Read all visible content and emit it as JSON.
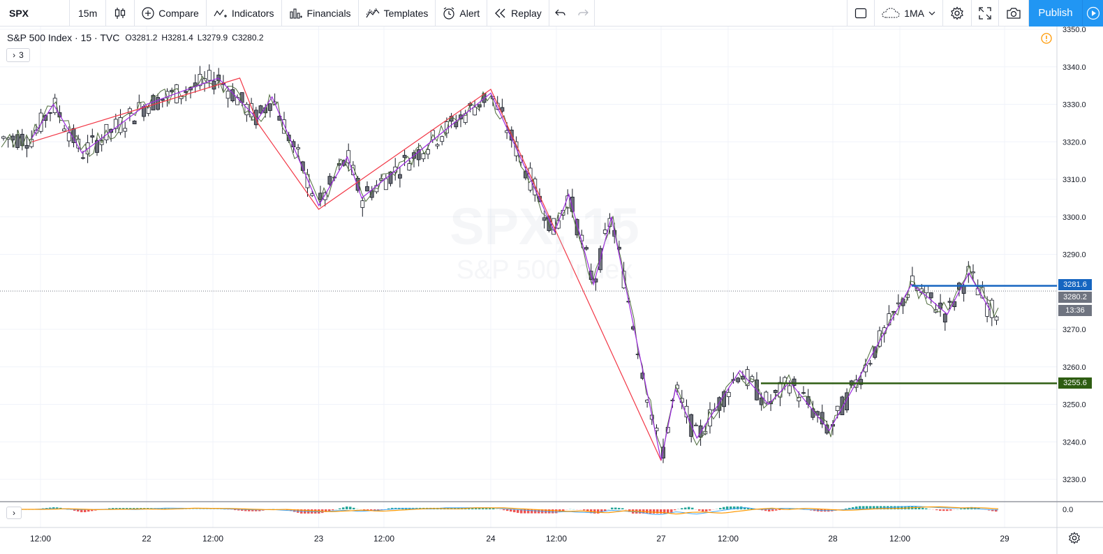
{
  "toolbar": {
    "symbol": "SPX",
    "interval": "15m",
    "compare": "Compare",
    "indicators": "Indicators",
    "financials": "Financials",
    "templates": "Templates",
    "alert": "Alert",
    "replay": "Replay",
    "layout_label": "1MA",
    "publish": "Publish"
  },
  "legend": {
    "title": "S&P 500 Index · 15 · TVC",
    "open": "O3281.2",
    "high": "H3281.4",
    "low": "L3279.9",
    "close": "C3280.2",
    "collapse": "3"
  },
  "watermark": {
    "symbol": "SPX, 15",
    "name": "S&P 500 Index"
  },
  "price_axis": {
    "ticks": [
      "3350.0",
      "3340.0",
      "3330.0",
      "3320.0",
      "3310.0",
      "3300.0",
      "3290.0",
      "3270.0",
      "3260.0",
      "3250.0",
      "3240.0",
      "3230.0"
    ],
    "tags": {
      "blue_line": "3281.6",
      "last_price": "3280.2",
      "countdown": "13:36",
      "green_line": "3255.6"
    },
    "macd_zero": "0.0"
  },
  "time_axis": [
    "12:00",
    "22",
    "12:00",
    "23",
    "12:00",
    "24",
    "12:00",
    "27",
    "12:00",
    "28",
    "12:00",
    "29"
  ],
  "colors": {
    "accent": "#2196f3",
    "blue_line": "#1565c0",
    "green_line": "#2e5d12",
    "zigzag_red": "#f23645",
    "zigzag_purple": "#9c27e0",
    "zigzag_green": "#4e6b3c",
    "macd_line": "#42a5f5",
    "signal_line": "#ff9800"
  },
  "chart_data": {
    "type": "candlestick",
    "price_range": [
      3225,
      3352
    ],
    "levels": {
      "blue": 3281.6,
      "green": 3255.6,
      "last": 3280.2
    },
    "red_zigzag": [
      {
        "t": "21 08:00",
        "p": 3320
      },
      {
        "t": "22 13:00",
        "p": 3337
      },
      {
        "t": "22 15:30",
        "p": 3325
      },
      {
        "t": "23 00:00",
        "p": 3302
      },
      {
        "t": "24 00:00",
        "p": 3334
      },
      {
        "t": "27 00:00",
        "p": 3235
      }
    ],
    "purple_zigzag": [
      {
        "t": "21 08:00",
        "p": 3321
      },
      {
        "t": "21 11:00",
        "p": 3330
      },
      {
        "t": "21 15:00",
        "p": 3317
      },
      {
        "t": "22 00:00",
        "p": 3330
      },
      {
        "t": "22 10:00",
        "p": 3337
      },
      {
        "t": "22 15:30",
        "p": 3326
      },
      {
        "t": "22 17:30",
        "p": 3332
      },
      {
        "t": "23 00:00",
        "p": 3303
      },
      {
        "t": "23 04:00",
        "p": 3316
      },
      {
        "t": "23 06:00",
        "p": 3305
      },
      {
        "t": "24 00:00",
        "p": 3333
      },
      {
        "t": "24 09:00",
        "p": 3296
      },
      {
        "t": "24 11:00",
        "p": 3306
      },
      {
        "t": "24 14:30",
        "p": 3282
      },
      {
        "t": "24 17:00",
        "p": 3300
      },
      {
        "t": "27 00:00",
        "p": 3235
      },
      {
        "t": "27 02:00",
        "p": 3254
      },
      {
        "t": "27 05:00",
        "p": 3241
      },
      {
        "t": "27 11:00",
        "p": 3259
      },
      {
        "t": "27 15:00",
        "p": 3250
      },
      {
        "t": "27 18:00",
        "p": 3256
      },
      {
        "t": "27 23:30",
        "p": 3243
      },
      {
        "t": "28 11:00",
        "p": 3282
      },
      {
        "t": "28 13:00",
        "p": 3279
      },
      {
        "t": "28 16:00",
        "p": 3274
      },
      {
        "t": "28 19:00",
        "p": 3285
      },
      {
        "t": "28 22:00",
        "p": 3275
      }
    ]
  }
}
